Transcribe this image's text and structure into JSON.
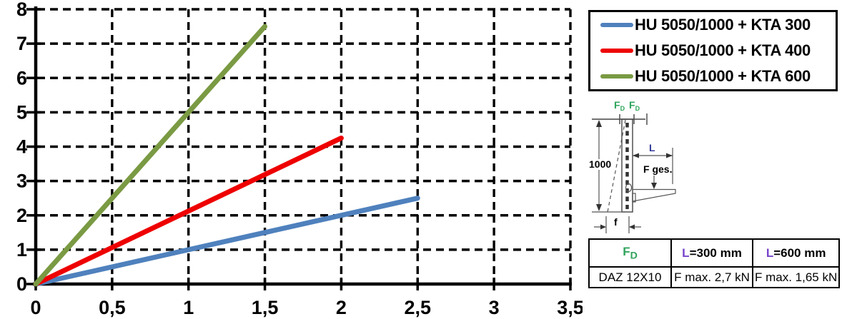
{
  "chart_data": {
    "type": "line",
    "title": "",
    "xlabel": "",
    "ylabel": "",
    "xlim": [
      0,
      3.5
    ],
    "ylim": [
      0,
      8
    ],
    "grid": "dashed-black",
    "legend_position": "top-right-outside",
    "x_ticks": [
      0,
      0.5,
      1,
      1.5,
      2,
      2.5,
      3,
      3.5
    ],
    "x_tick_labels": [
      "0",
      "0,5",
      "1",
      "1,5",
      "2",
      "2,5",
      "3",
      "3,5"
    ],
    "y_ticks": [
      0,
      1,
      2,
      3,
      4,
      5,
      6,
      7,
      8
    ],
    "y_tick_labels": [
      "0",
      "1",
      "2",
      "3",
      "4",
      "5",
      "6",
      "7",
      "8"
    ],
    "series": [
      {
        "name": "HU 5050/1000 + KTA 300",
        "color": "#4F81BD",
        "x": [
          0,
          2.5
        ],
        "y": [
          0,
          2.5
        ]
      },
      {
        "name": "HU 5050/1000 + KTA 400",
        "color": "#EE0000",
        "x": [
          0,
          2.0
        ],
        "y": [
          0,
          4.25
        ]
      },
      {
        "name": "HU 5050/1000 + KTA 600",
        "color": "#7A9A43",
        "x": [
          0,
          1.5
        ],
        "y": [
          0,
          7.5
        ]
      }
    ]
  },
  "diagram": {
    "fd_main": "F",
    "fd_sub": "D",
    "height_label": "1000",
    "length_label": "L",
    "force_label": "F ges.",
    "deflection_label": "f",
    "colors": {
      "fd_green": "#2FA45B",
      "l_navy": "#333B99",
      "l_purple": "#7744CC"
    }
  },
  "spec_table": {
    "header": {
      "fd_main": "F",
      "fd_sub": "D",
      "col2_prefix": "L",
      "col2_rest": "=300 mm",
      "col3_prefix": "L",
      "col3_rest": "=600 mm"
    },
    "row": [
      "DAZ 12X10",
      "F max. 2,7 kN",
      "F max. 1,65 kN"
    ]
  }
}
